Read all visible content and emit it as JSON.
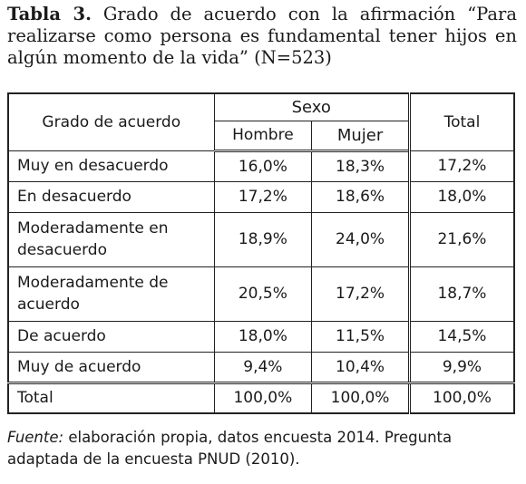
{
  "caption": {
    "label": "Tabla 3.",
    "text": "Grado de acuerdo con la afirmación “Para realizarse como persona es fundamental tener hijos en algún momento de la vida” (N=523)"
  },
  "table": {
    "header": {
      "col1": "Grado de acuerdo",
      "group": "Sexo",
      "sub1": "Hombre",
      "sub2": "Mujer",
      "total": "Total"
    },
    "rows": [
      {
        "label": "Muy en desacuerdo",
        "hombre": "16,0%",
        "mujer": "18,3%",
        "total": "17,2%"
      },
      {
        "label": "En desacuerdo",
        "hombre": "17,2%",
        "mujer": "18,6%",
        "total": "18,0%"
      },
      {
        "label": "Moderadamente en desacuerdo",
        "hombre": "18,9%",
        "mujer": "24,0%",
        "total": "21,6%"
      },
      {
        "label": "Moderadamente de acuerdo",
        "hombre": "20,5%",
        "mujer": "17,2%",
        "total": "18,7%"
      },
      {
        "label": "De acuerdo",
        "hombre": "18,0%",
        "mujer": "11,5%",
        "total": "14,5%"
      },
      {
        "label": "Muy de acuerdo",
        "hombre": "9,4%",
        "mujer": "10,4%",
        "total": "9,9%"
      },
      {
        "label": "Total",
        "hombre": "100,0%",
        "mujer": "100,0%",
        "total": "100,0%"
      }
    ]
  },
  "footnote": {
    "source_label": "Fuente:",
    "text": "elaboración propia, datos encuesta 2014. Pregunta adaptada de la encuesta PNUD (2010)."
  }
}
